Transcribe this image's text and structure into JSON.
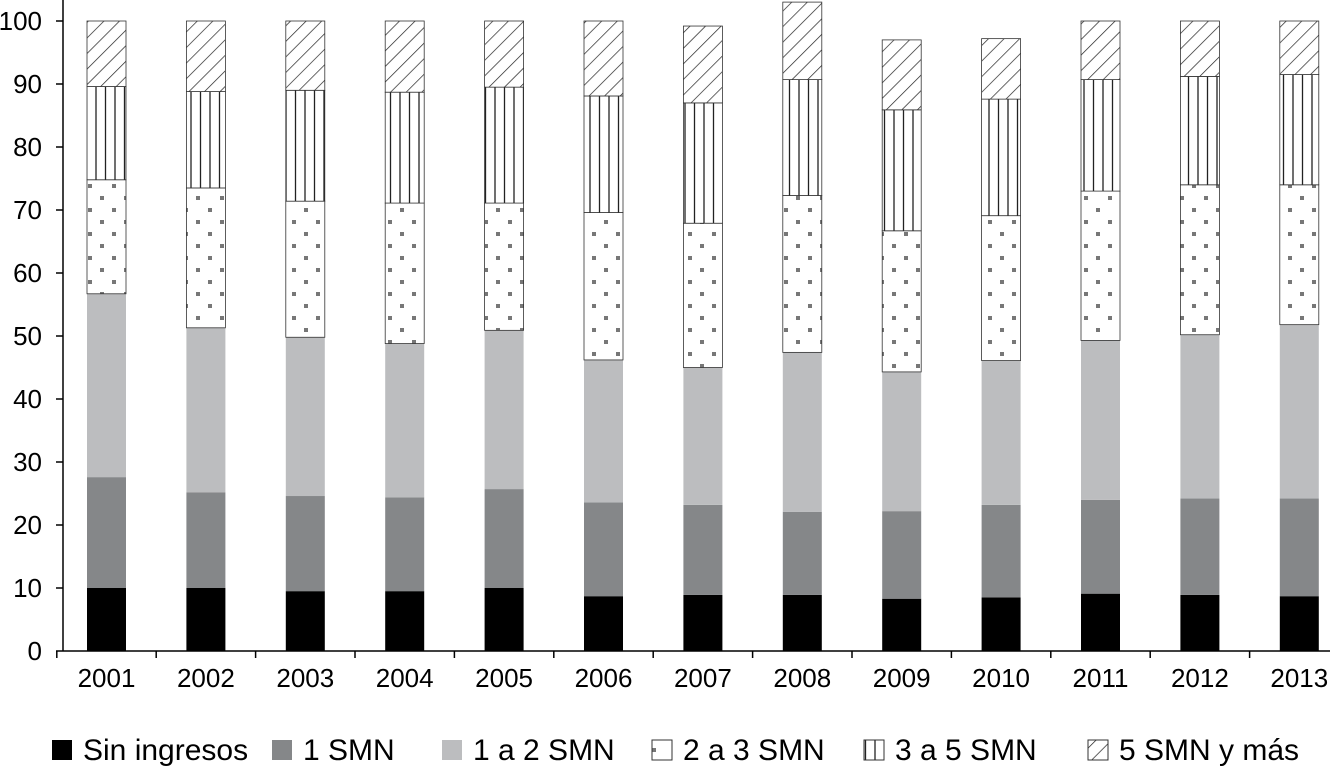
{
  "chart_data": {
    "type": "bar",
    "stacked": true,
    "title": "",
    "xlabel": "",
    "ylabel": "",
    "ylim": [
      0,
      100
    ],
    "yticks": [
      0,
      10,
      20,
      30,
      40,
      50,
      60,
      70,
      80,
      90,
      100
    ],
    "grid": false,
    "legend_position": "bottom",
    "categories": [
      "2001",
      "2002",
      "2003",
      "2004",
      "2005",
      "2006",
      "2007",
      "2008",
      "2009",
      "2010",
      "2011",
      "2012",
      "2013"
    ],
    "series": [
      {
        "name": "Sin ingresos",
        "pattern": "solid",
        "color": "#000000",
        "values": [
          10.0,
          10.0,
          9.5,
          9.5,
          10.0,
          8.7,
          8.9,
          8.9,
          8.3,
          8.5,
          9.1,
          8.9,
          8.7
        ]
      },
      {
        "name": "1 SMN",
        "pattern": "solid",
        "color": "#858789",
        "values": [
          17.6,
          15.2,
          15.1,
          14.9,
          15.7,
          14.9,
          14.3,
          13.2,
          13.9,
          14.7,
          14.9,
          15.3,
          15.5
        ]
      },
      {
        "name": "1 a 2 SMN",
        "pattern": "solid",
        "color": "#bcbdbf",
        "values": [
          29.1,
          26.1,
          25.2,
          24.4,
          25.2,
          22.6,
          21.8,
          25.3,
          22.1,
          22.9,
          25.3,
          26.0,
          27.6
        ]
      },
      {
        "name": "2 a 3 SMN",
        "pattern": "dots",
        "color": "#ffffff",
        "values": [
          18.1,
          22.2,
          21.6,
          22.3,
          20.2,
          23.4,
          22.9,
          24.9,
          22.4,
          23.0,
          23.7,
          23.8,
          22.2
        ]
      },
      {
        "name": "3 a 5 SMN",
        "pattern": "vertical-lines",
        "color": "#ffffff",
        "values": [
          14.8,
          15.3,
          17.6,
          17.6,
          18.4,
          18.5,
          19.1,
          18.4,
          19.2,
          18.5,
          17.7,
          17.2,
          17.5
        ]
      },
      {
        "name": "5 SMN y más",
        "pattern": "diagonal-hatch",
        "color": "#ffffff",
        "values": [
          10.4,
          11.2,
          11.0,
          11.3,
          10.5,
          11.9,
          12.2,
          12.3,
          11.1,
          9.6,
          9.3,
          8.8,
          8.5
        ]
      }
    ]
  }
}
